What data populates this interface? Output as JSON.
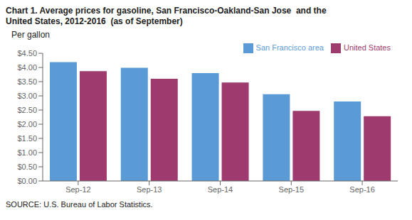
{
  "chart_data": {
    "type": "bar",
    "title": "Chart 1. Average prices for gasoline, San Francisco-Oakland-San Jose  and the\nUnited States, 2012-2016  (as of September)",
    "y_label": "Per gallon",
    "annotations": [
      "SOURCE: U.S. Bureau of Labor Statistics."
    ],
    "categories": [
      "Sep-12",
      "Sep-13",
      "Sep-14",
      "Sep-15",
      "Sep-16"
    ],
    "series": [
      {
        "name": "San Francisco area",
        "color": "#5B9BD5",
        "values": [
          4.19,
          3.99,
          3.8,
          3.06,
          2.8
        ]
      },
      {
        "name": "United States",
        "color": "#9E3A6E",
        "values": [
          3.87,
          3.6,
          3.47,
          2.47,
          2.28
        ]
      }
    ],
    "ylim": [
      0,
      4.5
    ],
    "yticks": [
      {
        "value": 0,
        "label": "$0.00"
      },
      {
        "value": 0.5,
        "label": "$0.50"
      },
      {
        "value": 1,
        "label": "$1.00"
      },
      {
        "value": 1.5,
        "label": "$1.50"
      },
      {
        "value": 2,
        "label": "$2.00"
      },
      {
        "value": 2.5,
        "label": "$2.50"
      },
      {
        "value": 3,
        "label": "$3.00"
      },
      {
        "value": 3.5,
        "label": "$3.50"
      },
      {
        "value": 4,
        "label": "$4.00"
      },
      {
        "value": 4.5,
        "label": "$4.50"
      }
    ],
    "grid": false,
    "legend": "upper right"
  }
}
